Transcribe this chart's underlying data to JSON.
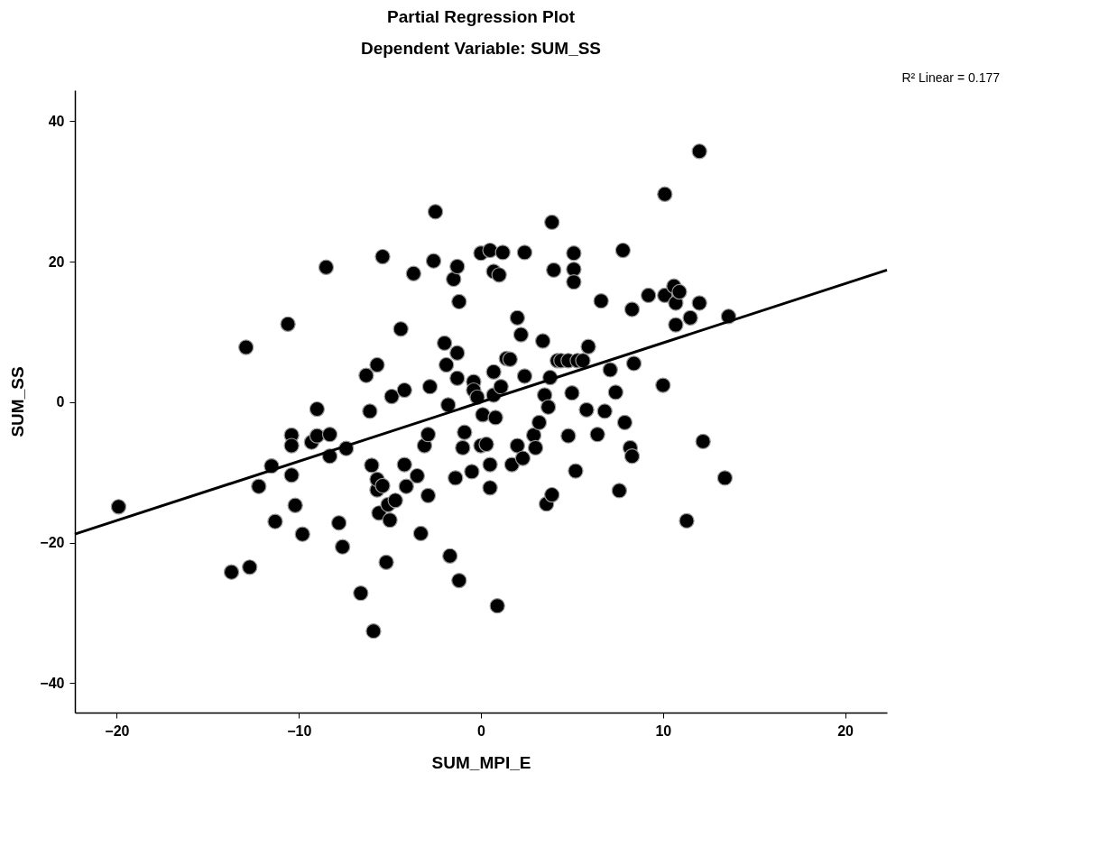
{
  "chart_data": {
    "type": "scatter",
    "title": "Partial Regression Plot",
    "subtitle": "Dependent Variable: SUM_SS",
    "xlabel": "SUM_MPI_E",
    "ylabel": "SUM_SS",
    "annotations": [
      "R² Linear = 0.177"
    ],
    "xlim": [
      -22.3,
      22.3
    ],
    "ylim": [
      -44.2,
      44.4
    ],
    "xticks": [
      -20,
      -10,
      0,
      10,
      20
    ],
    "yticks": [
      -40,
      -20,
      0,
      20,
      40
    ],
    "series": [
      {
        "marker": "circle",
        "color": "#000000",
        "x": [
          -19.9,
          -13.7,
          -12.7,
          -12.9,
          -12.2,
          -11.5,
          -11.3,
          -10.6,
          -10.4,
          -10.4,
          -10.4,
          -10.2,
          -9.8,
          -9.3,
          -9.0,
          -9.0,
          -8.5,
          -8.3,
          -8.3,
          -7.8,
          -7.6,
          -7.4,
          -6.6,
          -6.3,
          -6.1,
          -6.0,
          -5.9,
          -5.7,
          -5.7,
          -5.7,
          -5.6,
          -5.4,
          -5.4,
          -5.2,
          -5.1,
          -5.0,
          -4.9,
          -4.7,
          -4.4,
          -4.2,
          -4.2,
          -4.1,
          -3.7,
          -3.5,
          -3.3,
          -3.1,
          -2.9,
          -2.9,
          -2.8,
          -2.6,
          -2.5,
          -2.0,
          -1.9,
          -1.8,
          -1.7,
          -1.5,
          -1.4,
          -1.3,
          -1.2,
          -1.3,
          -1.3,
          -1.2,
          -1.0,
          -0.9,
          -0.5,
          -0.4,
          -0.4,
          -0.2,
          0.0,
          0.0,
          0.1,
          0.3,
          0.5,
          0.5,
          0.5,
          0.7,
          0.7,
          0.7,
          0.8,
          0.9,
          1.0,
          1.1,
          1.2,
          1.4,
          1.6,
          1.7,
          2.0,
          2.0,
          2.2,
          2.3,
          2.4,
          2.4,
          2.9,
          3.0,
          3.2,
          3.4,
          3.5,
          3.6,
          3.7,
          3.8,
          3.9,
          3.9,
          4.0,
          4.2,
          4.4,
          4.8,
          4.8,
          5.0,
          5.1,
          5.1,
          5.1,
          5.2,
          5.3,
          5.6,
          5.8,
          5.9,
          6.4,
          6.6,
          6.8,
          7.1,
          7.4,
          7.6,
          7.8,
          7.9,
          8.2,
          8.3,
          8.3,
          8.4,
          9.2,
          10.0,
          10.1,
          10.1,
          10.6,
          10.7,
          10.7,
          10.9,
          11.3,
          11.5,
          12.0,
          12.0,
          12.2,
          13.4,
          13.6
        ],
        "values": [
          -14.9,
          -24.2,
          -23.5,
          7.8,
          -12.0,
          -9.1,
          -17.0,
          11.1,
          -4.7,
          -6.2,
          -10.4,
          -14.7,
          -18.8,
          -5.7,
          -1.0,
          -4.8,
          19.2,
          -7.7,
          -4.6,
          -17.2,
          -20.6,
          -6.6,
          -27.2,
          3.8,
          -1.3,
          -9.0,
          -32.6,
          5.3,
          -12.5,
          -11.0,
          -15.8,
          20.7,
          -11.9,
          -22.8,
          -14.6,
          -16.8,
          0.8,
          -14.0,
          10.4,
          1.7,
          -8.9,
          -12.0,
          18.3,
          -10.5,
          -18.7,
          -6.2,
          -4.6,
          -13.3,
          2.2,
          20.1,
          27.1,
          8.4,
          5.3,
          -0.4,
          -21.9,
          17.5,
          -10.8,
          19.3,
          14.3,
          7.0,
          3.4,
          -25.4,
          -6.5,
          -4.3,
          -9.9,
          2.9,
          1.7,
          0.7,
          -6.2,
          21.2,
          -1.8,
          -6.0,
          21.6,
          -8.9,
          -12.2,
          18.6,
          4.3,
          1.0,
          -2.2,
          -29.0,
          18.1,
          2.2,
          21.3,
          6.2,
          6.1,
          -8.9,
          12.0,
          -6.2,
          9.6,
          -8.0,
          21.3,
          3.7,
          -4.7,
          -6.5,
          -2.9,
          8.7,
          1.0,
          -14.5,
          -0.7,
          3.5,
          -13.2,
          25.6,
          18.8,
          5.9,
          5.9,
          5.9,
          -4.8,
          1.3,
          21.2,
          18.9,
          17.1,
          -9.8,
          5.9,
          5.9,
          -1.1,
          7.9,
          -4.6,
          14.4,
          -1.3,
          4.6,
          1.4,
          -12.6,
          21.6,
          -2.9,
          -6.5,
          -7.7,
          13.2,
          5.5,
          15.2,
          2.4,
          15.2,
          29.6,
          16.5,
          14.1,
          11.0,
          15.7,
          -16.9,
          12.0,
          14.1,
          35.7,
          -5.6,
          -10.8,
          12.2
        ]
      },
      {
        "type": "line",
        "color": "#000000",
        "x": [
          -22.3,
          22.3
        ],
        "values": [
          -18.8,
          18.8
        ]
      }
    ]
  }
}
